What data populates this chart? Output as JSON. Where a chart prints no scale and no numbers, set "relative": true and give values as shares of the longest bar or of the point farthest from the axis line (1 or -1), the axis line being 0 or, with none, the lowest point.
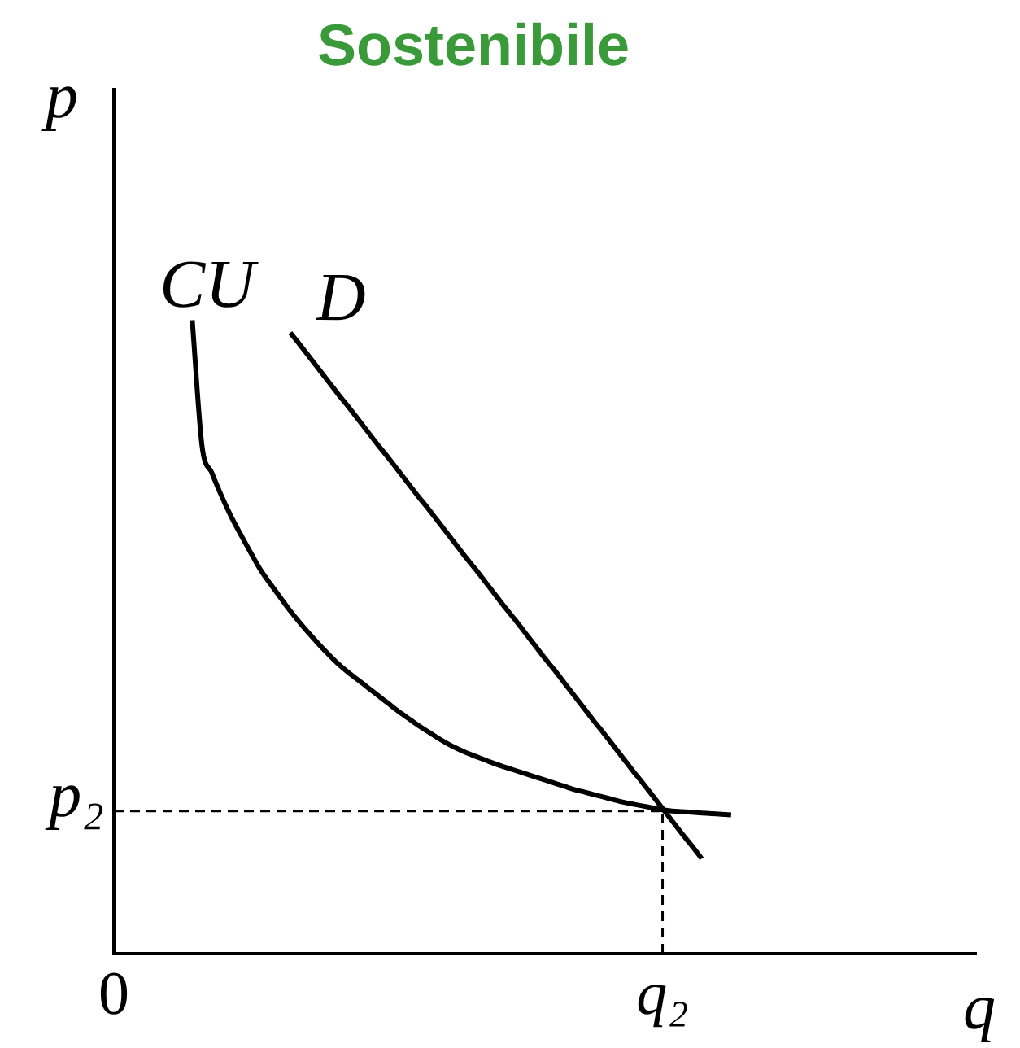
{
  "chart_data": {
    "type": "line",
    "title": "Sostenibile",
    "xlabel": "q",
    "ylabel": "p",
    "relative": true,
    "categories": [
      "0",
      null,
      null,
      null,
      null,
      null,
      null,
      null,
      null,
      null,
      null,
      null,
      null,
      null,
      null,
      null,
      null,
      null,
      null,
      null,
      null,
      null,
      null,
      null,
      null,
      null,
      null,
      null,
      null,
      null,
      null,
      null,
      null,
      null,
      null,
      null,
      null,
      null,
      null,
      null,
      null,
      null,
      null,
      null,
      null,
      null,
      null,
      null,
      null,
      null,
      null,
      null,
      null,
      null,
      null,
      null,
      "q₂",
      null,
      null,
      null,
      null,
      null,
      null,
      null,
      null,
      null,
      null,
      null,
      null,
      null,
      null,
      null,
      null,
      null,
      null,
      null,
      null,
      null,
      null,
      null,
      null,
      null,
      null,
      null,
      null,
      null,
      null,
      null,
      null
    ],
    "line_style": "solid",
    "marker": "none",
    "series": [
      {
        "name": "CU",
        "color": "#000000",
        "values": [
          null,
          null,
          null,
          null,
          null,
          null,
          null,
          null,
          1,
          0.801,
          0.759,
          0.722,
          0.689,
          0.66,
          0.632,
          0.605,
          0.583,
          0.562,
          0.541,
          0.522,
          0.504,
          0.487,
          0.471,
          0.456,
          0.443,
          0.431,
          0.419,
          0.407,
          0.395,
          0.383,
          0.372,
          0.361,
          0.351,
          0.341,
          0.332,
          0.324,
          0.317,
          0.311,
          0.305,
          0.299,
          0.294,
          0.289,
          0.284,
          0.279,
          0.274,
          0.269,
          0.264,
          0.259,
          0.255,
          0.251,
          0.247,
          0.243,
          0.239,
          0.236,
          0.233,
          0.23,
          0.227,
          0.225,
          0.224,
          0.223,
          0.222,
          0.221,
          0.22,
          0.219,
          null,
          null,
          null,
          null,
          null,
          null,
          null,
          null,
          null,
          null,
          null,
          null,
          null,
          null,
          null,
          null,
          null,
          null,
          null,
          null,
          null,
          null,
          null,
          null,
          null
        ]
      },
      {
        "name": "D",
        "color": "#000000",
        "values": [
          null,
          null,
          null,
          null,
          null,
          null,
          null,
          null,
          null,
          null,
          null,
          null,
          null,
          null,
          null,
          null,
          null,
          null,
          0.98,
          0.961,
          0.941,
          0.921,
          0.901,
          0.881,
          0.862,
          0.842,
          0.822,
          0.802,
          0.783,
          0.763,
          0.743,
          0.723,
          0.704,
          0.684,
          0.664,
          0.644,
          0.624,
          0.605,
          0.585,
          0.565,
          0.545,
          0.526,
          0.506,
          0.486,
          0.466,
          0.447,
          0.427,
          0.407,
          0.387,
          0.367,
          0.348,
          0.328,
          0.308,
          0.288,
          0.269,
          0.249,
          0.229,
          0.209,
          0.189,
          0.17,
          0.15,
          null,
          null,
          null,
          null,
          null,
          null,
          null,
          null,
          null,
          null,
          null,
          null,
          null,
          null,
          null,
          null,
          null,
          null,
          null,
          null,
          null,
          null,
          null,
          null,
          null,
          null,
          null,
          null
        ]
      }
    ],
    "ref_lines": [
      {
        "axis": "x",
        "value": "q₂",
        "label": null,
        "line_style": "dashed"
      },
      {
        "axis": "y",
        "value": 0.225,
        "label": "p₂",
        "line_style": "dashed"
      }
    ]
  }
}
